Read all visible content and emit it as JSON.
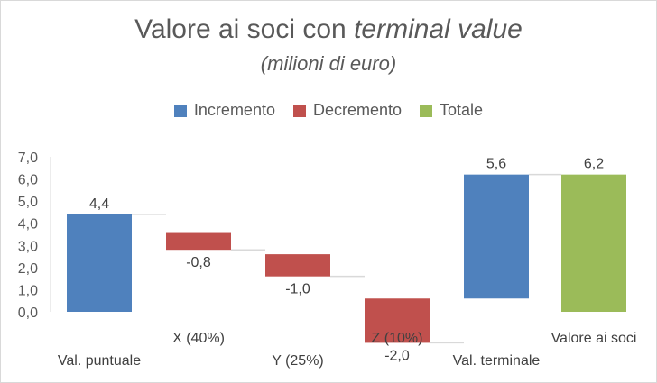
{
  "chart_data": {
    "type": "waterfall",
    "title_plain": "Valore ai soci con ",
    "title_italic": "terminal value",
    "subtitle": "(milioni di euro)",
    "legend": [
      {
        "name": "Incremento",
        "color": "#4f81bd"
      },
      {
        "name": "Decremento",
        "color": "#c0504d"
      },
      {
        "name": "Totale",
        "color": "#9bbb59"
      }
    ],
    "categories": [
      "Val. puntuale",
      "X (40%)",
      "Y (25%)",
      "Z (10%)",
      "Val. terminale",
      "Valore ai soci"
    ],
    "values": [
      4.4,
      -0.8,
      -1.0,
      -2.0,
      5.6,
      6.2
    ],
    "bases": [
      0,
      3.6,
      2.6,
      0.6,
      0.6,
      0
    ],
    "kinds": [
      "Incremento",
      "Decremento",
      "Decremento",
      "Decremento",
      "Incremento",
      "Totale"
    ],
    "data_labels": [
      "4,4",
      "-0,8",
      "-1,0",
      "-2,0",
      "5,6",
      "6,2"
    ],
    "y_ticks": [
      "0,0",
      "1,0",
      "2,0",
      "3,0",
      "4,0",
      "5,0",
      "6,0",
      "7,0"
    ],
    "ylim": [
      0,
      7
    ],
    "grid": false,
    "legend_position": "top"
  }
}
